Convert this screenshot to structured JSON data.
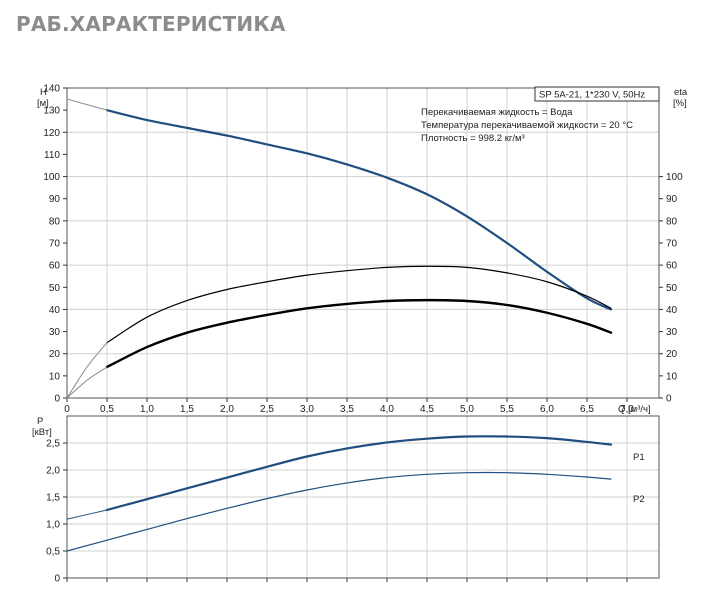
{
  "page": {
    "title": "РАБ.ХАРАКТЕРИСТИКА"
  },
  "colors": {
    "blue": "#1f4e7f",
    "black": "#000000",
    "grid": "#d0d0d0",
    "frame": "#555555",
    "grey": "#8a8a8a"
  },
  "chart_data": [
    {
      "type": "line",
      "title": "",
      "xlabel": "Q [м³/ч]",
      "ylabel": "H [м]",
      "ylabel_right": "eta [%]",
      "xlim": [
        0,
        7.4
      ],
      "ylim": [
        0,
        140
      ],
      "ylim_right": [
        0,
        140
      ],
      "grid": true,
      "x_ticks": [
        "0",
        "0,5",
        "1,0",
        "1,5",
        "2,0",
        "2,5",
        "3,0",
        "3,5",
        "4,0",
        "4,5",
        "5,0",
        "5,5",
        "6,0",
        "6,5",
        "7,0"
      ],
      "x_tick_values": [
        0,
        0.5,
        1.0,
        1.5,
        2.0,
        2.5,
        3.0,
        3.5,
        4.0,
        4.5,
        5.0,
        5.5,
        6.0,
        6.5,
        7.0
      ],
      "y_ticks": [
        "0",
        "10",
        "20",
        "30",
        "40",
        "50",
        "60",
        "70",
        "80",
        "90",
        "100",
        "110",
        "120",
        "130",
        "140"
      ],
      "y_tick_values": [
        0,
        10,
        20,
        30,
        40,
        50,
        60,
        70,
        80,
        90,
        100,
        110,
        120,
        130,
        140
      ],
      "y_right_ticks": [
        "0",
        "10",
        "20",
        "30",
        "40",
        "50",
        "60",
        "70",
        "80",
        "90",
        "100"
      ],
      "y_right_tick_values": [
        0,
        10,
        20,
        30,
        40,
        50,
        60,
        70,
        80,
        90,
        100
      ],
      "legend_box": "SP 5A-21, 1*230 V, 50Hz",
      "notes": [
        "Перекачиваемая жидкость = Вода",
        "Температура перекачиваемой жидкости = 20 °C",
        "Плотность = 998.2 кг/м³"
      ],
      "series": [
        {
          "id": "H",
          "axis": "left",
          "color": "#1f4e7f",
          "width": 2.2,
          "x": [
            0.5,
            1.0,
            1.5,
            2.0,
            2.5,
            3.0,
            3.5,
            4.0,
            4.5,
            5.0,
            5.5,
            6.0,
            6.5,
            6.8
          ],
          "y": [
            130,
            125.5,
            122,
            118.5,
            114.5,
            110.5,
            105.5,
            99.5,
            92,
            82,
            70,
            57,
            45,
            40
          ]
        },
        {
          "id": "H-ext",
          "axis": "left",
          "color": "#8a8a8a",
          "width": 1,
          "x": [
            0,
            0.5
          ],
          "y": [
            135,
            130
          ]
        },
        {
          "id": "eta-thin",
          "axis": "right",
          "color": "#000000",
          "width": 1.2,
          "x": [
            0.5,
            1.0,
            1.5,
            2.0,
            2.5,
            3.0,
            3.5,
            4.0,
            4.5,
            5.0,
            5.5,
            6.0,
            6.5,
            6.8
          ],
          "y": [
            25,
            36.5,
            44,
            49,
            52.5,
            55.5,
            57.5,
            59,
            59.5,
            59,
            56.5,
            52.5,
            46,
            40.5
          ]
        },
        {
          "id": "eta-thin-ext",
          "axis": "right",
          "color": "#8a8a8a",
          "width": 1,
          "x": [
            0,
            0.25,
            0.5
          ],
          "y": [
            0,
            14,
            25
          ]
        },
        {
          "id": "eta-thick",
          "axis": "right",
          "color": "#000000",
          "width": 2.4,
          "x": [
            0.5,
            1.0,
            1.5,
            2.0,
            2.5,
            3.0,
            3.5,
            4.0,
            4.5,
            5.0,
            5.5,
            6.0,
            6.5,
            6.8
          ],
          "y": [
            14,
            23,
            29.5,
            34,
            37.5,
            40.5,
            42.5,
            43.8,
            44.2,
            43.8,
            42,
            38.5,
            33.5,
            29.5
          ]
        },
        {
          "id": "eta-thick-ext",
          "axis": "right",
          "color": "#8a8a8a",
          "width": 1,
          "x": [
            0,
            0.25,
            0.5
          ],
          "y": [
            0,
            8,
            14
          ]
        }
      ]
    },
    {
      "type": "line",
      "title": "",
      "xlabel": "",
      "ylabel": "P [кВт]",
      "xlim": [
        0,
        7.4
      ],
      "ylim": [
        0,
        3.0
      ],
      "grid": true,
      "x_tick_values": [
        0,
        0.5,
        1.0,
        1.5,
        2.0,
        2.5,
        3.0,
        3.5,
        4.0,
        4.5,
        5.0,
        5.5,
        6.0,
        6.5,
        7.0
      ],
      "y_ticks": [
        "0",
        "0,5",
        "1,0",
        "1,5",
        "2,0",
        "2,5"
      ],
      "y_tick_values": [
        0,
        0.5,
        1.0,
        1.5,
        2.0,
        2.5
      ],
      "series": [
        {
          "id": "P1",
          "name": "P1",
          "color": "#1f4e7f",
          "width": 2.2,
          "x": [
            0.5,
            1.0,
            1.5,
            2.0,
            2.5,
            3.0,
            3.5,
            4.0,
            4.5,
            5.0,
            5.5,
            6.0,
            6.5,
            6.8
          ],
          "y": [
            1.26,
            1.46,
            1.66,
            1.86,
            2.06,
            2.25,
            2.4,
            2.51,
            2.58,
            2.62,
            2.62,
            2.59,
            2.52,
            2.47
          ]
        },
        {
          "id": "P1-ext",
          "color": "#1f4e7f",
          "width": 1,
          "x": [
            0,
            0.5
          ],
          "y": [
            1.09,
            1.26
          ]
        },
        {
          "id": "P2",
          "name": "P2",
          "color": "#1f4e7f",
          "width": 1.2,
          "x": [
            0,
            0.5,
            1.0,
            1.5,
            2.0,
            2.5,
            3.0,
            3.5,
            4.0,
            4.5,
            5.0,
            5.5,
            6.0,
            6.5,
            6.8
          ],
          "y": [
            0.5,
            0.7,
            0.9,
            1.1,
            1.29,
            1.47,
            1.63,
            1.76,
            1.86,
            1.92,
            1.95,
            1.95,
            1.92,
            1.87,
            1.83
          ]
        }
      ]
    }
  ]
}
